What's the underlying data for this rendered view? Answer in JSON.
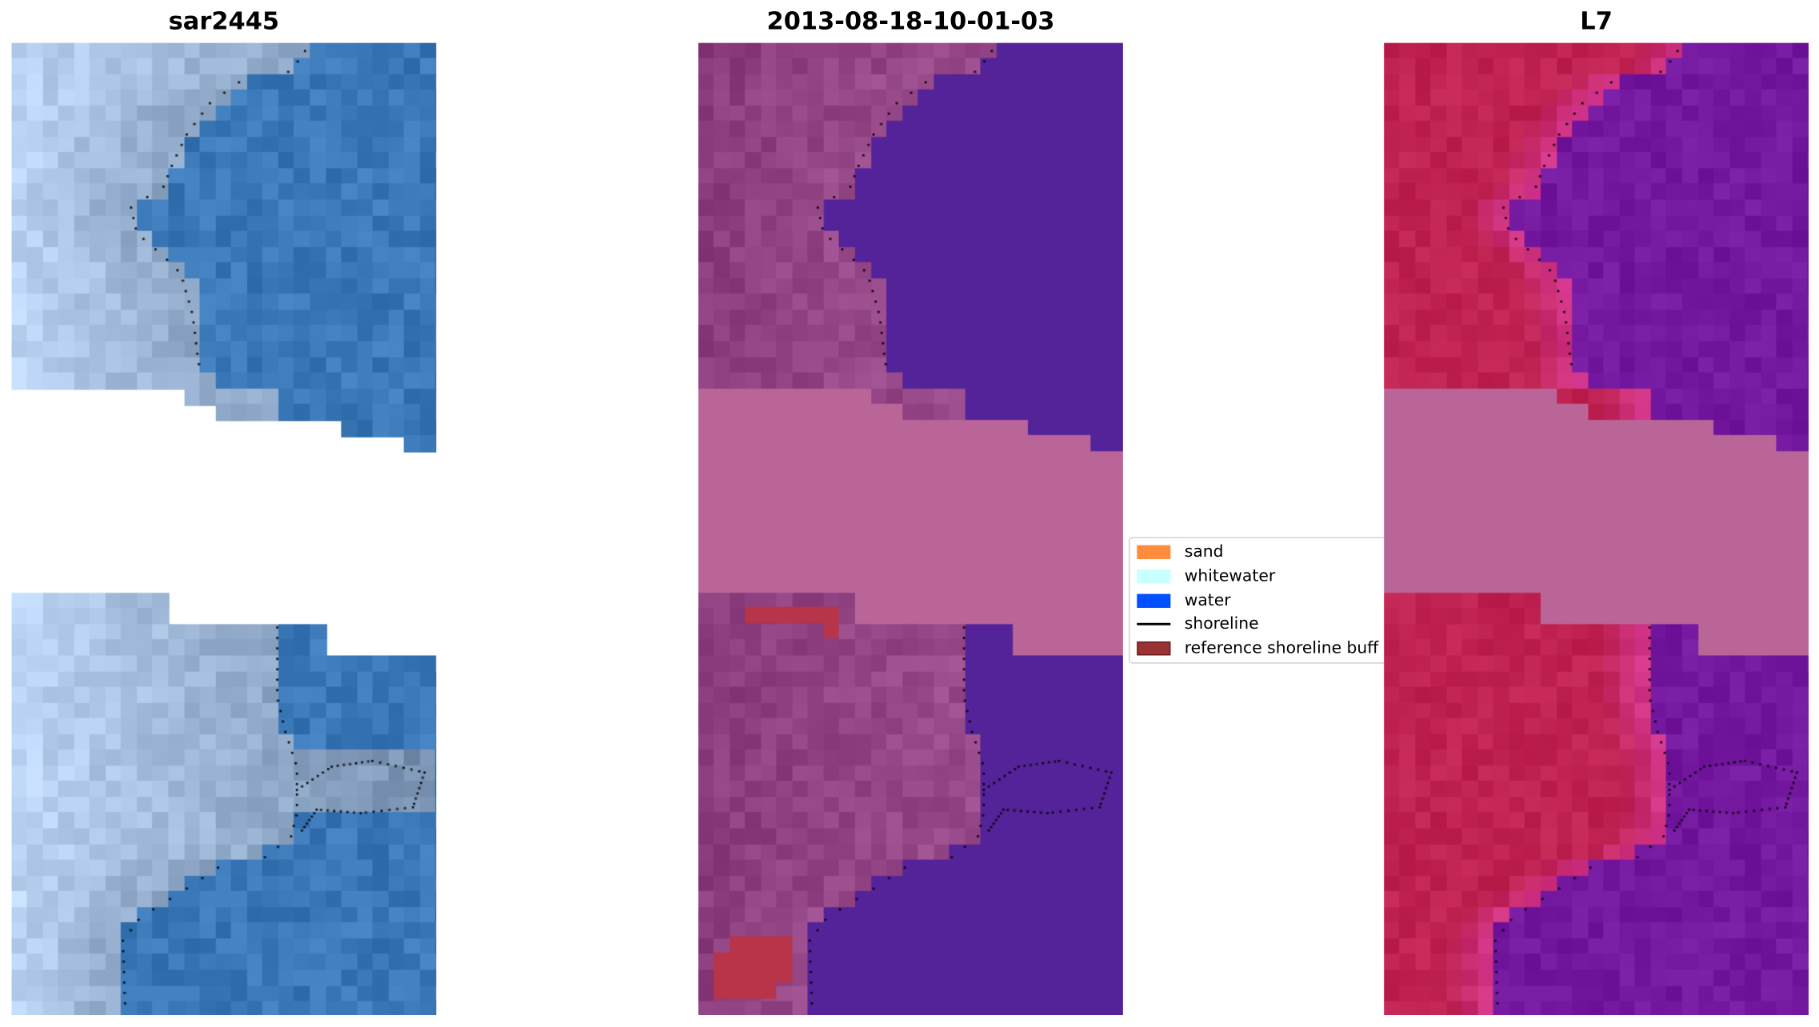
{
  "chart_data": {
    "type": "image-panels",
    "panels": [
      {
        "title": "sar2445",
        "content": "RGB satellite image with detected shoreline"
      },
      {
        "title": "2013-08-18-10-01-03",
        "content": "classified image with shoreline and reference buffer"
      },
      {
        "title": "L7",
        "content": "false-colour index image with shoreline"
      }
    ],
    "legend": {
      "placement": "center",
      "entries": [
        {
          "label": "sand",
          "color": "#ff8c3c",
          "kind": "patch"
        },
        {
          "label": "whitewater",
          "color": "#c8ffff",
          "kind": "patch"
        },
        {
          "label": "water",
          "color": "#0050ff",
          "kind": "patch"
        },
        {
          "label": "shoreline",
          "color": "#000000",
          "kind": "line"
        },
        {
          "label": "reference shoreline buff",
          "color": "#993333",
          "kind": "patch"
        }
      ]
    },
    "colors": {
      "rgb_land": "#8ea6c6",
      "rgb_water": "#3a78b8",
      "class_land": "#8a3c7c",
      "class_water": "#552399",
      "class_nodata": "#ba6598",
      "class_buffer": "#b83448",
      "index_land": "#c02352",
      "index_water": "#7418a0",
      "index_nodata": "#ba6598"
    },
    "grid": false
  }
}
